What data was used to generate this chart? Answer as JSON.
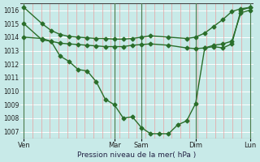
{
  "title": "Pression niveau de la mer( hPa )",
  "ylim": [
    1006.5,
    1016.5
  ],
  "yticks": [
    1007,
    1008,
    1009,
    1010,
    1011,
    1012,
    1013,
    1014,
    1015,
    1016
  ],
  "xtick_labels": [
    "Ven",
    "Mar",
    "Sam",
    "Dim",
    "Lun"
  ],
  "xtick_positions": [
    0,
    5,
    6.5,
    9.5,
    12.5
  ],
  "vline_positions": [
    0,
    5,
    6.5,
    9.5,
    12.5
  ],
  "bg_color": "#c8eae8",
  "hgrid_color": "#ffffff",
  "vgrid_color": "#e8a0a0",
  "line_color": "#2a6e2a",
  "line_width": 1.0,
  "marker": "D",
  "marker_size": 2.5,
  "series1_x": [
    0,
    1,
    1.5,
    2,
    2.5,
    3,
    3.5,
    4,
    4.5,
    5,
    5.5,
    6,
    6.5,
    7,
    8,
    9,
    9.5,
    10,
    10.5,
    11,
    11.5,
    12,
    12.5
  ],
  "series1_y": [
    1016.2,
    1015.0,
    1014.5,
    1014.2,
    1014.05,
    1014.0,
    1013.95,
    1013.9,
    1013.9,
    1013.85,
    1013.85,
    1013.9,
    1014.0,
    1014.1,
    1014.0,
    1013.9,
    1014.0,
    1014.3,
    1014.8,
    1015.3,
    1015.9,
    1016.1,
    1016.2
  ],
  "series2_x": [
    0,
    1,
    1.5,
    2,
    2.5,
    3,
    3.5,
    4,
    4.5,
    5,
    5.5,
    6,
    6.5,
    7,
    7.5,
    8,
    8.5,
    9,
    9.5,
    10,
    10.5,
    11,
    11.5,
    12,
    12.5
  ],
  "series2_y": [
    1015.0,
    1013.8,
    1013.7,
    1012.6,
    1012.2,
    1011.6,
    1011.5,
    1010.7,
    1009.4,
    1009.0,
    1008.0,
    1008.1,
    1007.3,
    1006.85,
    1006.85,
    1006.85,
    1007.5,
    1007.8,
    1009.1,
    1013.2,
    1013.3,
    1013.2,
    1013.5,
    1016.0,
    1016.2
  ],
  "series3_x": [
    0,
    1,
    1.5,
    2,
    2.5,
    3,
    3.5,
    4,
    4.5,
    5,
    5.5,
    6,
    6.5,
    7,
    8,
    9,
    9.5,
    10,
    10.5,
    11,
    11.5,
    12,
    12.5
  ],
  "series3_y": [
    1014.0,
    1013.9,
    1013.7,
    1013.55,
    1013.5,
    1013.45,
    1013.4,
    1013.35,
    1013.3,
    1013.3,
    1013.3,
    1013.4,
    1013.45,
    1013.5,
    1013.4,
    1013.2,
    1013.15,
    1013.2,
    1013.4,
    1013.5,
    1013.7,
    1015.8,
    1016.0
  ]
}
